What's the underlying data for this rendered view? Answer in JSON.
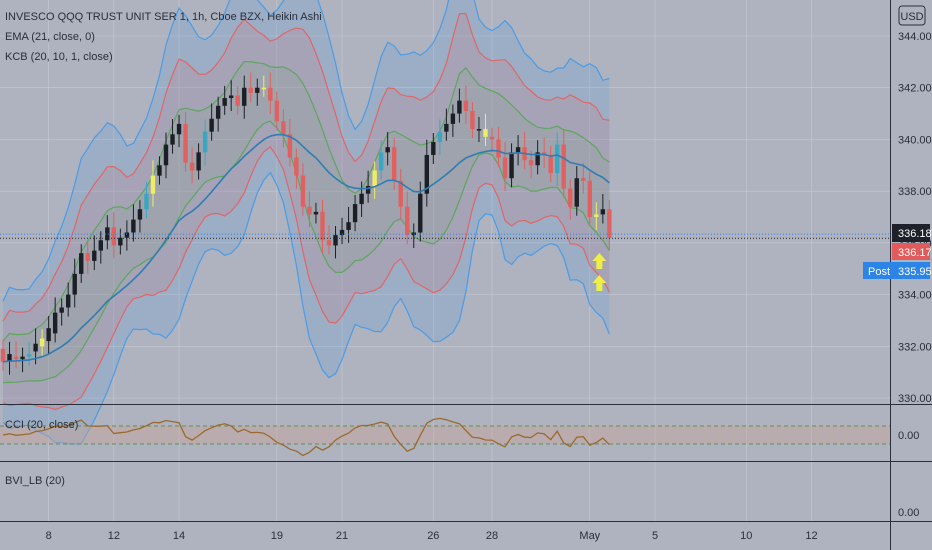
{
  "legend": {
    "title": "INVESCO QQQ TRUST UNIT SER 1, 1h, Cboe BZX, Heikin Ashi",
    "ema": "EMA (21, close, 0)",
    "kcb": "KCB (20, 10, 1, close)",
    "cci": "CCI (20, close)",
    "bvi": "BVI_LB (20)"
  },
  "currency_button": "USD",
  "price_tags": {
    "last": "336.18",
    "ema": "336.17",
    "post_label": "Post",
    "post": "335.95"
  },
  "colors": {
    "background": "#aeb3bf",
    "up": "#1d1f26",
    "down": "#e0615f",
    "up_accent": "#3ba6c2",
    "ha_yellow": "#eeee66",
    "outer_band": "#4c9be6",
    "inner_band": "#e06666",
    "mid_band": "#5da65d",
    "ema": "#2f7cb4",
    "cci_line": "#9a6a2c",
    "arrow": "#eeee44"
  },
  "chart_data": {
    "type": "candlestick",
    "title": "INVESCO QQQ TRUST UNIT SER 1, 1h, Cboe BZX, Heikin Ashi",
    "currency": "USD",
    "price_ticks": [
      330,
      332,
      334,
      336,
      338,
      340,
      342,
      344
    ],
    "price_range": [
      329.3,
      345.2
    ],
    "x_ticks": [
      "8",
      "12",
      "14",
      "19",
      "21",
      "26",
      "28",
      "May",
      "5",
      "10",
      "12"
    ],
    "x_tick_index": [
      7,
      17,
      27,
      42,
      52,
      66,
      75,
      90,
      100,
      114,
      124
    ],
    "close": [
      331.4,
      331.7,
      331.5,
      331.6,
      331.7,
      332.1,
      332.3,
      332.7,
      333.3,
      333.5,
      334.0,
      334.8,
      335.6,
      335.3,
      335.7,
      336.1,
      336.6,
      335.9,
      336.2,
      336.4,
      336.9,
      337.3,
      337.9,
      338.6,
      339.0,
      339.8,
      340.2,
      340.6,
      339.1,
      338.8,
      339.5,
      340.3,
      340.8,
      341.3,
      341.6,
      341.7,
      341.3,
      342.0,
      341.8,
      342.0,
      342.0,
      341.5,
      340.7,
      340.2,
      339.3,
      338.6,
      337.4,
      337.1,
      337.2,
      336.1,
      335.9,
      336.3,
      336.5,
      336.8,
      337.5,
      337.9,
      338.2,
      338.8,
      339.5,
      339.7,
      338.4,
      337.4,
      336.3,
      336.4,
      337.9,
      339.4,
      339.9,
      340.3,
      340.6,
      341.0,
      341.5,
      341.1,
      340.4,
      340.4,
      340.1,
      340.0,
      339.3,
      338.5,
      339.5,
      339.7,
      339.2,
      339.0,
      339.5,
      339.4,
      338.7,
      339.8,
      338.1,
      337.4,
      338.5,
      338.4,
      337.0,
      337.1,
      337.3,
      336.2
    ],
    "open": [
      331.9,
      331.4,
      331.6,
      331.5,
      331.6,
      331.8,
      332.0,
      332.2,
      332.5,
      333.3,
      333.5,
      334.0,
      334.8,
      335.6,
      335.3,
      335.7,
      336.1,
      336.6,
      335.9,
      336.2,
      336.4,
      336.9,
      337.3,
      337.9,
      338.6,
      339.0,
      339.8,
      340.2,
      340.6,
      339.1,
      338.8,
      339.5,
      340.3,
      340.8,
      341.3,
      341.6,
      341.7,
      341.3,
      342.0,
      341.8,
      342.0,
      342.0,
      341.5,
      340.7,
      340.2,
      339.3,
      338.6,
      337.4,
      337.1,
      337.2,
      336.1,
      335.9,
      336.3,
      336.5,
      336.8,
      337.5,
      337.9,
      338.2,
      338.8,
      339.5,
      339.7,
      338.4,
      337.4,
      336.3,
      336.4,
      337.9,
      339.4,
      339.9,
      340.3,
      340.6,
      341.0,
      341.5,
      341.1,
      340.4,
      340.4,
      340.1,
      340.0,
      339.3,
      338.5,
      339.5,
      339.7,
      339.2,
      339.0,
      339.5,
      339.4,
      338.7,
      339.8,
      338.1,
      337.4,
      338.5,
      338.4,
      337.0,
      337.1,
      337.3
    ],
    "ema_last": 336.17,
    "post_price": 335.95,
    "last_price": 336.18,
    "cci_ticks": [
      "0.00"
    ],
    "bvi_ticks": [
      "0.00"
    ]
  }
}
